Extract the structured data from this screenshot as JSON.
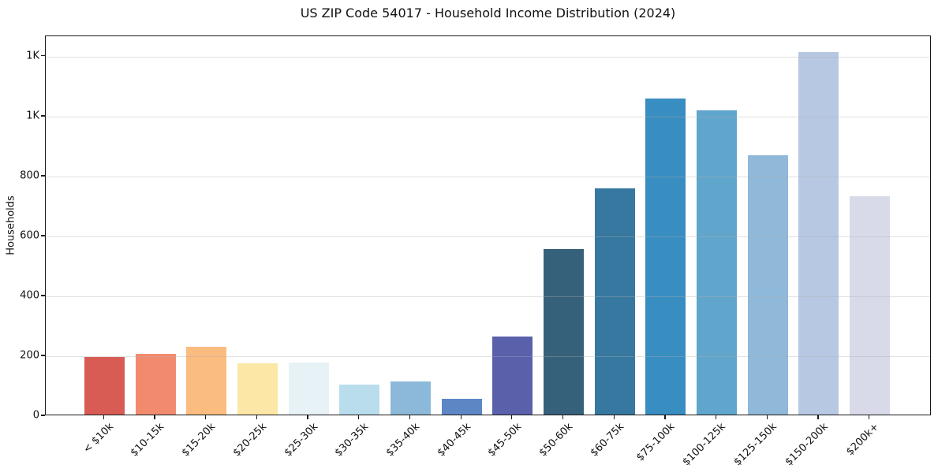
{
  "chart_data": {
    "type": "bar",
    "title": "US ZIP Code 54017 - Household Income Distribution (2024)",
    "xlabel": "",
    "ylabel": "Households",
    "categories": [
      "< $10k",
      "$10-15k",
      "$15-20k",
      "$20-25k",
      "$25-30k",
      "$30-35k",
      "$35-40k",
      "$40-45k",
      "$45-50k",
      "$50-60k",
      "$60-75k",
      "$75-100k",
      "$100-125k",
      "$125-150k",
      "$150-200k",
      "$200k+"
    ],
    "values": [
      193,
      203,
      226,
      171,
      174,
      100,
      110,
      52,
      260,
      553,
      755,
      1055,
      1015,
      865,
      1210,
      730
    ],
    "bar_colors": [
      "#d85c54",
      "#f28b6e",
      "#fbbc80",
      "#fde7a6",
      "#e7f2f6",
      "#b9ddec",
      "#8cb9d9",
      "#5d87c4",
      "#5a60aa",
      "#36617a",
      "#36789f",
      "#388dc1",
      "#60a5cb",
      "#8fb8d9",
      "#b7c8e2",
      "#d8dae9"
    ],
    "ylim": [
      0,
      1268
    ],
    "yticks": {
      "values": [
        0,
        200,
        400,
        600,
        800,
        1000,
        1200
      ],
      "labels": [
        "0",
        "200",
        "400",
        "600",
        "800",
        "1K",
        "1K"
      ]
    },
    "x_tick_rotation_deg": 45,
    "grid": "horizontal, drawn over bars, light gray",
    "legend": "none",
    "background_color": "#ffffff",
    "axis_color": "#1a1a1a",
    "text_color": "#111111"
  }
}
